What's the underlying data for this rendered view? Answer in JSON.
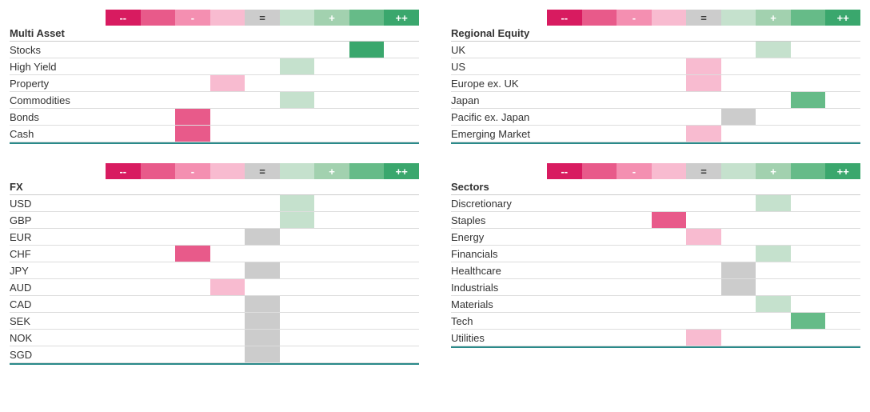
{
  "scale": {
    "labels": [
      "--",
      "",
      "-",
      "",
      "=",
      "",
      "+",
      "",
      "++"
    ],
    "colors": [
      "#d81b60",
      "#e85a8a",
      "#f48fb1",
      "#f8bbd0",
      "#cccccc",
      "#c5e1cd",
      "#a2d1af",
      "#66bb88",
      "#3aa76d"
    ],
    "textDark": [
      false,
      false,
      false,
      false,
      true,
      true,
      false,
      false,
      false
    ]
  },
  "colors": {
    "border": "#dddddd",
    "panelEnd": "#2a8a8a",
    "titleBorder": "#cccccc"
  },
  "panels": [
    {
      "title": "Multi Asset",
      "rows": [
        {
          "label": "Stocks",
          "pos": 7,
          "color": "#3aa76d"
        },
        {
          "label": "High Yield",
          "pos": 5,
          "color": "#c5e1cd"
        },
        {
          "label": "Property",
          "pos": 3,
          "color": "#f8bbd0"
        },
        {
          "label": "Commodities",
          "pos": 5,
          "color": "#c5e1cd"
        },
        {
          "label": "Bonds",
          "pos": 2,
          "color": "#e85a8a"
        },
        {
          "label": "Cash",
          "pos": 2,
          "color": "#e85a8a"
        }
      ]
    },
    {
      "title": "Regional Equity",
      "rows": [
        {
          "label": "UK",
          "pos": 6,
          "color": "#c5e1cd"
        },
        {
          "label": "US",
          "pos": 4,
          "color": "#f8bbd0"
        },
        {
          "label": "Europe ex. UK",
          "pos": 4,
          "color": "#f8bbd0"
        },
        {
          "label": "Japan",
          "pos": 7,
          "color": "#66bb88"
        },
        {
          "label": "Pacific ex. Japan",
          "pos": 5,
          "color": "#cccccc"
        },
        {
          "label": "Emerging Market",
          "pos": 4,
          "color": "#f8bbd0"
        }
      ]
    },
    {
      "title": "FX",
      "rows": [
        {
          "label": "USD",
          "pos": 5,
          "color": "#c5e1cd"
        },
        {
          "label": "GBP",
          "pos": 5,
          "color": "#c5e1cd"
        },
        {
          "label": "EUR",
          "pos": 4,
          "color": "#cccccc"
        },
        {
          "label": "CHF",
          "pos": 2,
          "color": "#e85a8a"
        },
        {
          "label": "JPY",
          "pos": 4,
          "color": "#cccccc"
        },
        {
          "label": "AUD",
          "pos": 3,
          "color": "#f8bbd0"
        },
        {
          "label": "CAD",
          "pos": 4,
          "color": "#cccccc"
        },
        {
          "label": "SEK",
          "pos": 4,
          "color": "#cccccc"
        },
        {
          "label": "NOK",
          "pos": 4,
          "color": "#cccccc"
        },
        {
          "label": "SGD",
          "pos": 4,
          "color": "#cccccc"
        }
      ]
    },
    {
      "title": "Sectors",
      "rows": [
        {
          "label": "Discretionary",
          "pos": 6,
          "color": "#c5e1cd"
        },
        {
          "label": "Staples",
          "pos": 3,
          "color": "#e85a8a"
        },
        {
          "label": "Energy",
          "pos": 4,
          "color": "#f8bbd0"
        },
        {
          "label": "Financials",
          "pos": 6,
          "color": "#c5e1cd"
        },
        {
          "label": "Healthcare",
          "pos": 5,
          "color": "#cccccc"
        },
        {
          "label": "Industrials",
          "pos": 5,
          "color": "#cccccc"
        },
        {
          "label": "Materials",
          "pos": 6,
          "color": "#c5e1cd"
        },
        {
          "label": "Tech",
          "pos": 7,
          "color": "#66bb88"
        },
        {
          "label": "Utilities",
          "pos": 4,
          "color": "#f8bbd0"
        }
      ]
    }
  ]
}
